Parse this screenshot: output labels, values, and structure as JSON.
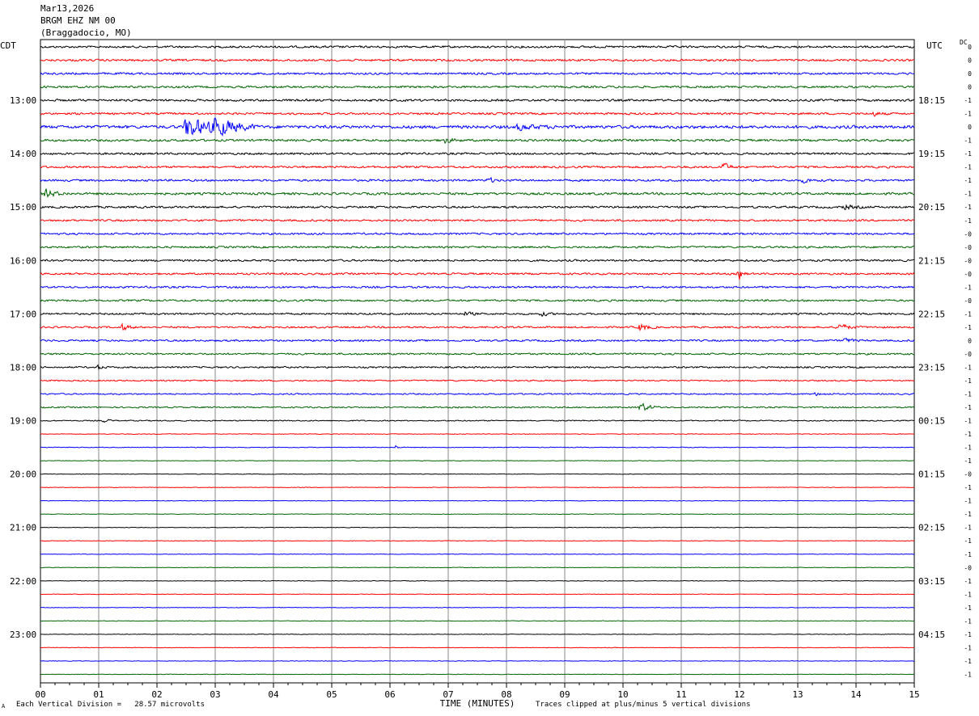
{
  "header": {
    "date": "Mar13,2026",
    "station": "BRGM EHZ NM 00",
    "location": "(Braggadocio, MO)",
    "left_tz": "CDT",
    "right_tz": "UTC",
    "dc_label": "DC"
  },
  "footer": {
    "scale_note": "Each Vertical Division =   28.57 microvolts",
    "clip_note": "Traces clipped at plus/minus 5 vertical divisions",
    "mark": "A"
  },
  "chart_data": {
    "type": "line",
    "title": "",
    "xlabel": "TIME (MINUTES)",
    "ylabel": "",
    "xlim": [
      0,
      15
    ],
    "x_ticks": [
      "00",
      "01",
      "02",
      "03",
      "04",
      "05",
      "06",
      "07",
      "08",
      "09",
      "10",
      "11",
      "12",
      "13",
      "14",
      "15"
    ],
    "grid": true,
    "left_hour_labels": [
      "13:00",
      "14:00",
      "15:00",
      "16:00",
      "17:00",
      "18:00",
      "19:00",
      "20:00",
      "21:00",
      "22:00",
      "23:00"
    ],
    "right_hour_labels": [
      "18:15",
      "19:15",
      "20:15",
      "21:15",
      "22:15",
      "23:15",
      "00:15",
      "01:15",
      "02:15",
      "03:15",
      "04:15"
    ],
    "hour_label_start_row": 4,
    "trace_colors": [
      "#000000",
      "#ff0000",
      "#0000ff",
      "#006400"
    ],
    "trace_count": 48,
    "dc_offsets": [
      "0",
      "0",
      "0",
      "0",
      "-1",
      "-1",
      "0",
      "-1",
      "-1",
      "-1",
      "-1",
      "-1",
      "-1",
      "-1",
      "-0",
      "-0",
      "-0",
      "-0",
      "-1",
      "-0",
      "-1",
      "-1",
      "0",
      "-0",
      "-1",
      "-1",
      "-1",
      "-1",
      "-1",
      "-1",
      "-1",
      "-1",
      "-0",
      "-1",
      "-1",
      "-1",
      "-1",
      "-1",
      "-1",
      "-0",
      "-1",
      "-1",
      "-1",
      "-1",
      "-1",
      "-1",
      "-1",
      "-1"
    ],
    "noise_level": [
      1.5,
      1.5,
      1.5,
      1.5,
      1.6,
      1.5,
      2.2,
      1.6,
      1.5,
      1.5,
      1.5,
      1.7,
      1.5,
      1.4,
      1.4,
      1.4,
      1.4,
      1.4,
      1.4,
      1.4,
      1.3,
      1.3,
      1.3,
      1.3,
      1.2,
      1.0,
      1.0,
      1.0,
      0.8,
      0.5,
      0.5,
      0.4,
      0.4,
      0.4,
      0.4,
      0.4,
      0.4,
      0.4,
      0.4,
      0.4,
      0.4,
      0.4,
      0.4,
      0.4,
      0.4,
      0.4,
      0.4,
      0.4
    ],
    "events": [
      {
        "trace": 6,
        "minute": 2.5,
        "amplitude": 16,
        "duration": 1.2
      },
      {
        "trace": 6,
        "minute": 3.0,
        "amplitude": 12,
        "duration": 0.8
      },
      {
        "trace": 6,
        "minute": 8.2,
        "amplitude": 4,
        "duration": 0.8
      },
      {
        "trace": 5,
        "minute": 14.3,
        "amplitude": 3,
        "duration": 0.3
      },
      {
        "trace": 7,
        "minute": 6.9,
        "amplitude": 5,
        "duration": 0.4
      },
      {
        "trace": 9,
        "minute": 11.7,
        "amplitude": 7,
        "duration": 0.3
      },
      {
        "trace": 10,
        "minute": 7.7,
        "amplitude": 4,
        "duration": 0.2
      },
      {
        "trace": 10,
        "minute": 13.1,
        "amplitude": 3,
        "duration": 0.4
      },
      {
        "trace": 11,
        "minute": 0.1,
        "amplitude": 6,
        "duration": 0.4
      },
      {
        "trace": 12,
        "minute": 13.8,
        "amplitude": 3,
        "duration": 0.5
      },
      {
        "trace": 17,
        "minute": 12.0,
        "amplitude": 8,
        "duration": 0.15
      },
      {
        "trace": 20,
        "minute": 7.3,
        "amplitude": 3,
        "duration": 0.3
      },
      {
        "trace": 20,
        "minute": 8.6,
        "amplitude": 3,
        "duration": 0.3
      },
      {
        "trace": 21,
        "minute": 1.4,
        "amplitude": 5,
        "duration": 0.3
      },
      {
        "trace": 21,
        "minute": 10.3,
        "amplitude": 6,
        "duration": 0.3
      },
      {
        "trace": 21,
        "minute": 13.7,
        "amplitude": 6,
        "duration": 0.4
      },
      {
        "trace": 22,
        "minute": 13.8,
        "amplitude": 3,
        "duration": 0.4
      },
      {
        "trace": 24,
        "minute": 1.0,
        "amplitude": 3,
        "duration": 0.2
      },
      {
        "trace": 26,
        "minute": 13.3,
        "amplitude": 2,
        "duration": 0.4
      },
      {
        "trace": 27,
        "minute": 10.3,
        "amplitude": 7,
        "duration": 0.4
      },
      {
        "trace": 28,
        "minute": 1.1,
        "amplitude": 3,
        "duration": 0.2
      },
      {
        "trace": 30,
        "minute": 6.1,
        "amplitude": 3,
        "duration": 0.1
      }
    ]
  }
}
